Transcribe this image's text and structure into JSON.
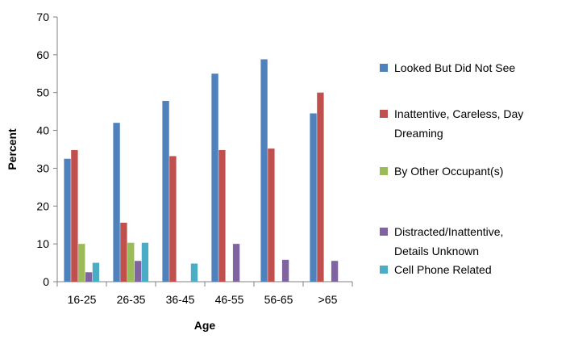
{
  "chart_data": {
    "type": "bar",
    "categories": [
      "16-25",
      "26-35",
      "36-45",
      "46-55",
      "56-65",
      ">65"
    ],
    "series": [
      {
        "name": "Looked But Did Not See",
        "color": "#4F81BD",
        "values": [
          32.5,
          42,
          47.8,
          55,
          58.8,
          44.5
        ]
      },
      {
        "name": "Inattentive, Careless, Day Dreaming",
        "color": "#C0504D",
        "values": [
          34.8,
          15.6,
          33.2,
          34.8,
          35.2,
          50
        ]
      },
      {
        "name": "By Other Occupant(s)",
        "color": "#9BBB59",
        "values": [
          10,
          10.3,
          null,
          null,
          null,
          null
        ]
      },
      {
        "name": "Distracted/Inattentive, Details Unknown",
        "color": "#8064A2",
        "values": [
          2.5,
          5.5,
          null,
          10,
          5.8,
          5.5
        ]
      },
      {
        "name": "Cell Phone Related",
        "color": "#4BACC6",
        "values": [
          5,
          10.3,
          4.8,
          null,
          null,
          null
        ]
      }
    ],
    "legend_lines": [
      [
        "Looked But Did Not See"
      ],
      [
        "Inattentive, Careless, Day",
        "Dreaming"
      ],
      [
        "By Other Occupant(s)"
      ],
      [
        "Distracted/Inattentive,",
        "Details Unknown"
      ],
      [
        "Cell Phone Related"
      ]
    ],
    "title": "",
    "xlabel": "Age",
    "ylabel": "Percent",
    "ylim": [
      0,
      70
    ],
    "yticks": [
      0,
      10,
      20,
      30,
      40,
      50,
      60,
      70
    ],
    "grid": false,
    "legend_position": "right"
  }
}
